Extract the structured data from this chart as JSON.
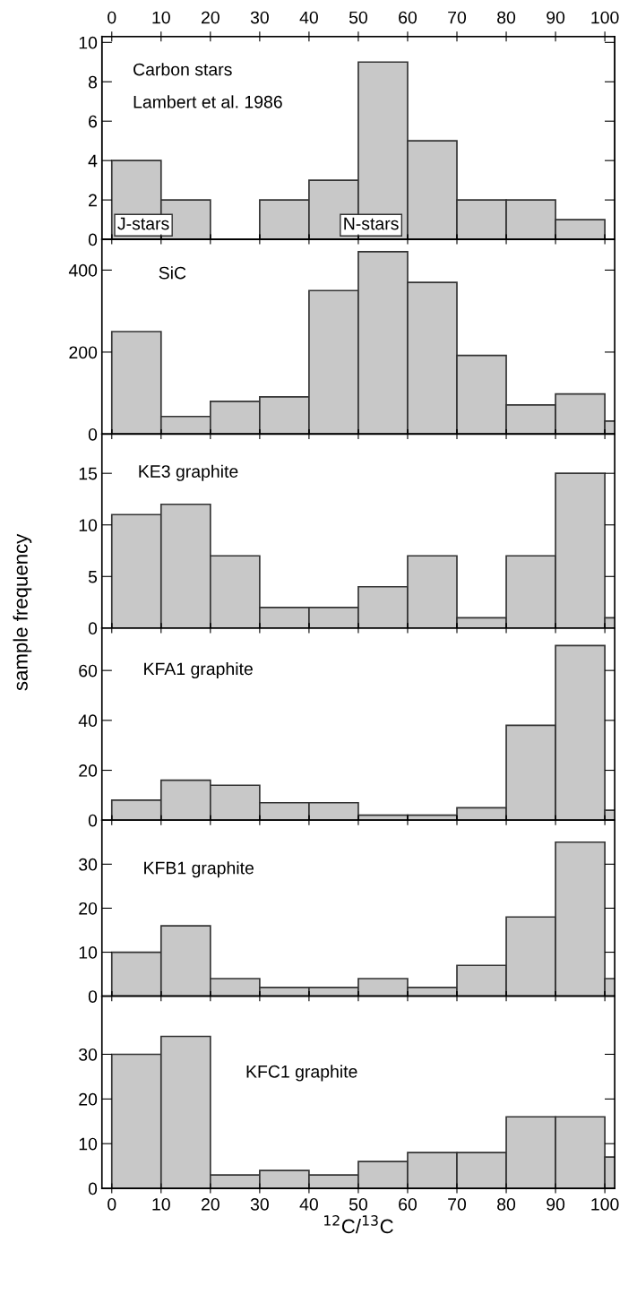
{
  "chart_data": [
    {
      "type": "histogram",
      "bins": [
        0,
        10,
        20,
        30,
        40,
        50,
        60,
        70,
        80,
        90,
        100
      ],
      "values": [
        4,
        2,
        0,
        2,
        3,
        9,
        5,
        2,
        2,
        1
      ],
      "color": "#c8c8c8",
      "xlim": [
        -2,
        102
      ],
      "xticks": [
        0,
        10,
        20,
        30,
        40,
        50,
        60,
        70,
        80,
        90,
        100
      ],
      "x2lim": [
        -2,
        102
      ],
      "x2ticks": [
        0,
        10,
        20,
        30,
        40,
        50,
        60,
        70,
        80,
        90,
        100
      ],
      "ylim": [
        0,
        10.3
      ],
      "yticks": [
        0,
        2,
        4,
        6,
        8,
        10
      ],
      "tick_labels": "y",
      "grid": false,
      "annotations": [
        "Carbon stars",
        "Lambert et al. 1986",
        "J-stars",
        "N-stars"
      ]
    },
    {
      "type": "histogram",
      "bins": [
        0,
        10,
        20,
        30,
        40,
        50,
        60,
        70,
        80,
        90,
        100,
        110
      ],
      "values": [
        250,
        43,
        80,
        91,
        350,
        445,
        370,
        192,
        71,
        98,
        32
      ],
      "color": "#c8c8c8",
      "xlim": [
        -2,
        102
      ],
      "xticks": [
        0,
        10,
        20,
        30,
        40,
        50,
        60,
        70,
        80,
        90,
        100
      ],
      "ylim": [
        0,
        475
      ],
      "yticks": [
        0,
        200,
        400
      ],
      "tick_labels": "y",
      "grid": false,
      "annotations": [
        "SiC"
      ]
    },
    {
      "type": "histogram",
      "bins": [
        0,
        10,
        20,
        30,
        40,
        50,
        60,
        70,
        80,
        90,
        100,
        110
      ],
      "values": [
        11,
        12,
        7,
        2,
        2,
        4,
        7,
        1,
        7,
        15,
        1
      ],
      "color": "#c8c8c8",
      "xlim": [
        -2,
        102
      ],
      "xticks": [
        0,
        10,
        20,
        30,
        40,
        50,
        60,
        70,
        80,
        90,
        100
      ],
      "ylim": [
        0,
        18.8
      ],
      "yticks": [
        0,
        5,
        10,
        15
      ],
      "tick_labels": "y",
      "grid": false,
      "annotations": [
        "KE3 graphite"
      ],
      "ylabel": "sample frequency"
    },
    {
      "type": "histogram",
      "bins": [
        0,
        10,
        20,
        30,
        40,
        50,
        60,
        70,
        80,
        90,
        100,
        110
      ],
      "values": [
        8,
        16,
        14,
        7,
        7,
        2,
        2,
        5,
        38,
        70,
        4
      ],
      "color": "#c8c8c8",
      "xlim": [
        -2,
        102
      ],
      "xticks": [
        0,
        10,
        20,
        30,
        40,
        50,
        60,
        70,
        80,
        90,
        100
      ],
      "ylim": [
        0,
        77
      ],
      "yticks": [
        0,
        20,
        40,
        60
      ],
      "tick_labels": "y",
      "grid": false,
      "annotations": [
        "KFA1 graphite"
      ]
    },
    {
      "type": "histogram",
      "bins": [
        0,
        10,
        20,
        30,
        40,
        50,
        60,
        70,
        80,
        90,
        100,
        110
      ],
      "values": [
        10,
        16,
        4,
        2,
        2,
        4,
        2,
        7,
        18,
        35,
        4
      ],
      "color": "#c8c8c8",
      "xlim": [
        -2,
        102
      ],
      "xticks": [
        0,
        10,
        20,
        30,
        40,
        50,
        60,
        70,
        80,
        90,
        100
      ],
      "ylim": [
        0,
        40
      ],
      "yticks": [
        0,
        10,
        20,
        30
      ],
      "tick_labels": "y",
      "grid": false,
      "annotations": [
        "KFB1 graphite"
      ]
    },
    {
      "type": "histogram",
      "bins": [
        0,
        10,
        20,
        30,
        40,
        50,
        60,
        70,
        80,
        90,
        100,
        110
      ],
      "values": [
        30,
        34,
        3,
        4,
        3,
        6,
        8,
        8,
        16,
        16,
        7
      ],
      "color": "#c8c8c8",
      "xlim": [
        -2,
        102
      ],
      "xticks": [
        0,
        10,
        20,
        30,
        40,
        50,
        60,
        70,
        80,
        90,
        100
      ],
      "ylim": [
        0,
        43
      ],
      "yticks": [
        0,
        10,
        20,
        30
      ],
      "grid": false,
      "annotations": [
        "KFC1 graphite"
      ],
      "xlabel": "$^{12}$C/$^{13}$C"
    }
  ]
}
